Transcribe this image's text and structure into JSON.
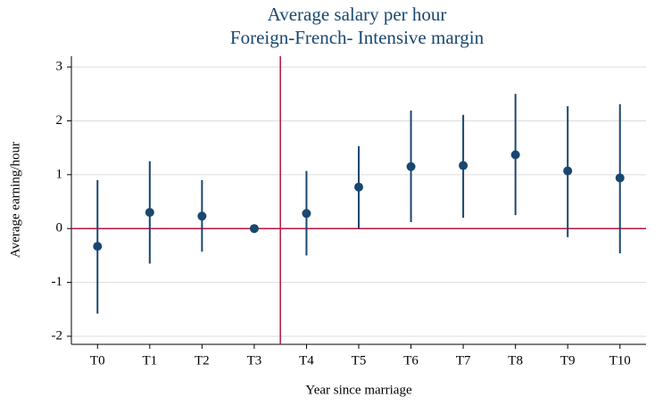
{
  "chart_data": {
    "type": "errorbar",
    "title": "Average salary per hour",
    "subtitle": "Foreign-French- Intensive margin",
    "x_label": "Year since marriage",
    "y_label": "Average earning/hour",
    "categories": [
      "T0",
      "T1",
      "T2",
      "T3",
      "T4",
      "T5",
      "T6",
      "T7",
      "T8",
      "T9",
      "T10"
    ],
    "values": [
      -0.33,
      0.3,
      0.23,
      0,
      0.28,
      0.77,
      1.15,
      1.17,
      1.37,
      1.07,
      0.94
    ],
    "lower": [
      -1.58,
      -0.65,
      -0.43,
      null,
      -0.5,
      0,
      0.12,
      0.2,
      0.25,
      -0.16,
      -0.46
    ],
    "upper": [
      0.9,
      1.25,
      0.9,
      null,
      1.07,
      1.53,
      2.19,
      2.11,
      2.5,
      2.27,
      2.31
    ],
    "color": "#1a476f",
    "reference_color": "#b5163e",
    "hline": 0,
    "vline": 3.5,
    "ylim": [
      -2.15,
      3.2
    ],
    "yticks": [
      -2,
      -1,
      0,
      1,
      2,
      3
    ],
    "grid": true
  }
}
